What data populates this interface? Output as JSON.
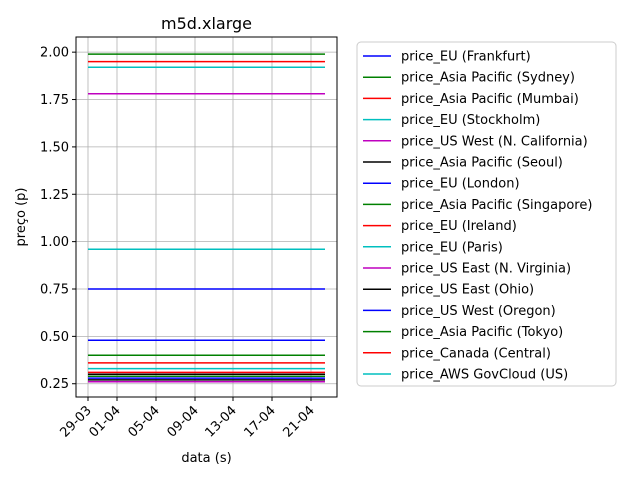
{
  "chart_data": {
    "type": "line",
    "title": "m5d.xlarge",
    "xlabel": "data (s)",
    "ylabel": "preço (p)",
    "x_tick_labels": [
      "29-03",
      "01-04",
      "05-04",
      "09-04",
      "13-04",
      "17-04",
      "21-04"
    ],
    "x": [
      "29-03",
      "24-04"
    ],
    "ylim": [
      0.18,
      2.08
    ],
    "y_ticks": [
      0.25,
      0.5,
      0.75,
      1.0,
      1.25,
      1.5,
      1.75,
      2.0
    ],
    "y_tick_labels": [
      "0.25",
      "0.50",
      "0.75",
      "1.00",
      "1.25",
      "1.50",
      "1.75",
      "2.00"
    ],
    "grid": true,
    "legend_position": "outside-right",
    "series": [
      {
        "name": "price_EU (Frankfurt)",
        "color": "#0000ff",
        "values": [
          0.48,
          0.48
        ]
      },
      {
        "name": "price_Asia Pacific (Sydney)",
        "color": "#008000",
        "values": [
          1.99,
          1.99
        ]
      },
      {
        "name": "price_Asia Pacific (Mumbai)",
        "color": "#ff0000",
        "values": [
          1.95,
          1.95
        ]
      },
      {
        "name": "price_EU (Stockholm)",
        "color": "#00bfbf",
        "values": [
          1.92,
          1.92
        ]
      },
      {
        "name": "price_US West (N. California)",
        "color": "#bf00bf",
        "values": [
          1.78,
          1.78
        ]
      },
      {
        "name": "price_Asia Pacific (Seoul)",
        "color": "#000000",
        "values": [
          0.3,
          0.3
        ]
      },
      {
        "name": "price_EU (London)",
        "color": "#0000ff",
        "values": [
          0.75,
          0.75
        ]
      },
      {
        "name": "price_Asia Pacific (Singapore)",
        "color": "#008000",
        "values": [
          0.4,
          0.4
        ]
      },
      {
        "name": "price_EU (Ireland)",
        "color": "#ff0000",
        "values": [
          0.36,
          0.36
        ]
      },
      {
        "name": "price_EU (Paris)",
        "color": "#00bfbf",
        "values": [
          0.96,
          0.96
        ]
      },
      {
        "name": "price_US East (N. Virginia)",
        "color": "#bf00bf",
        "values": [
          0.26,
          0.26
        ]
      },
      {
        "name": "price_US East (Ohio)",
        "color": "#000000",
        "values": [
          0.27,
          0.27
        ]
      },
      {
        "name": "price_US West (Oregon)",
        "color": "#0000ff",
        "values": [
          0.28,
          0.28
        ]
      },
      {
        "name": "price_Asia Pacific (Tokyo)",
        "color": "#008000",
        "values": [
          0.29,
          0.29
        ]
      },
      {
        "name": "price_Canada (Central)",
        "color": "#ff0000",
        "values": [
          0.31,
          0.31
        ]
      },
      {
        "name": "price_AWS GovCloud (US)",
        "color": "#00bfbf",
        "values": [
          0.33,
          0.33
        ]
      }
    ]
  }
}
